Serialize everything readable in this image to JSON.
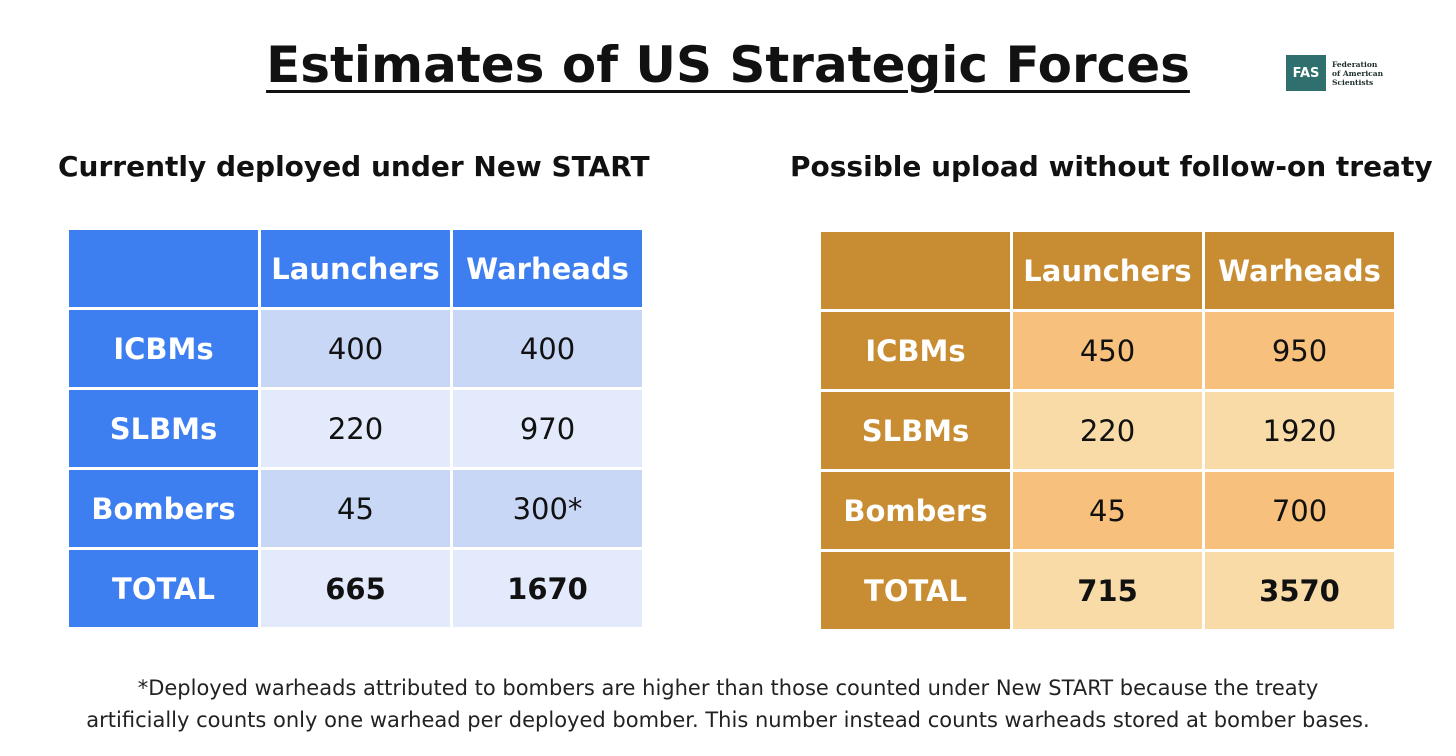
{
  "title": "Estimates of US Strategic Forces",
  "logo": {
    "abbr": "FAS",
    "line1": "Federation",
    "line2": "of American",
    "line3": "Scientists"
  },
  "left": {
    "heading": "Currently deployed under New START",
    "columns": [
      "",
      "Launchers",
      "Warheads"
    ],
    "rows": [
      {
        "label": "ICBMs",
        "launchers": "400",
        "warheads": "400"
      },
      {
        "label": "SLBMs",
        "launchers": "220",
        "warheads": "970"
      },
      {
        "label": "Bombers",
        "launchers": "45",
        "warheads": "300*"
      },
      {
        "label": "TOTAL",
        "launchers": "665",
        "warheads": "1670"
      }
    ],
    "colors": {
      "header": "#3d7ef0",
      "cell_dark": "#c9d7f7",
      "cell_light": "#e3eafb"
    }
  },
  "right": {
    "heading": "Possible upload without follow-on treaty",
    "columns": [
      "",
      "Launchers",
      "Warheads"
    ],
    "rows": [
      {
        "label": "ICBMs",
        "launchers": "450",
        "warheads": "950"
      },
      {
        "label": "SLBMs",
        "launchers": "220",
        "warheads": "1920"
      },
      {
        "label": "Bombers",
        "launchers": "45",
        "warheads": "700"
      },
      {
        "label": "TOTAL",
        "launchers": "715",
        "warheads": "3570"
      }
    ],
    "colors": {
      "header": "#c88d32",
      "cell_dark": "#f8c07d",
      "cell_light": "#f9dba8"
    }
  },
  "footnote": {
    "line1": "*Deployed warheads attributed to bombers are higher than those counted under New START because the treaty",
    "line2": "artificially counts only one warhead per deployed bomber. This number instead counts warheads stored at bomber bases."
  }
}
